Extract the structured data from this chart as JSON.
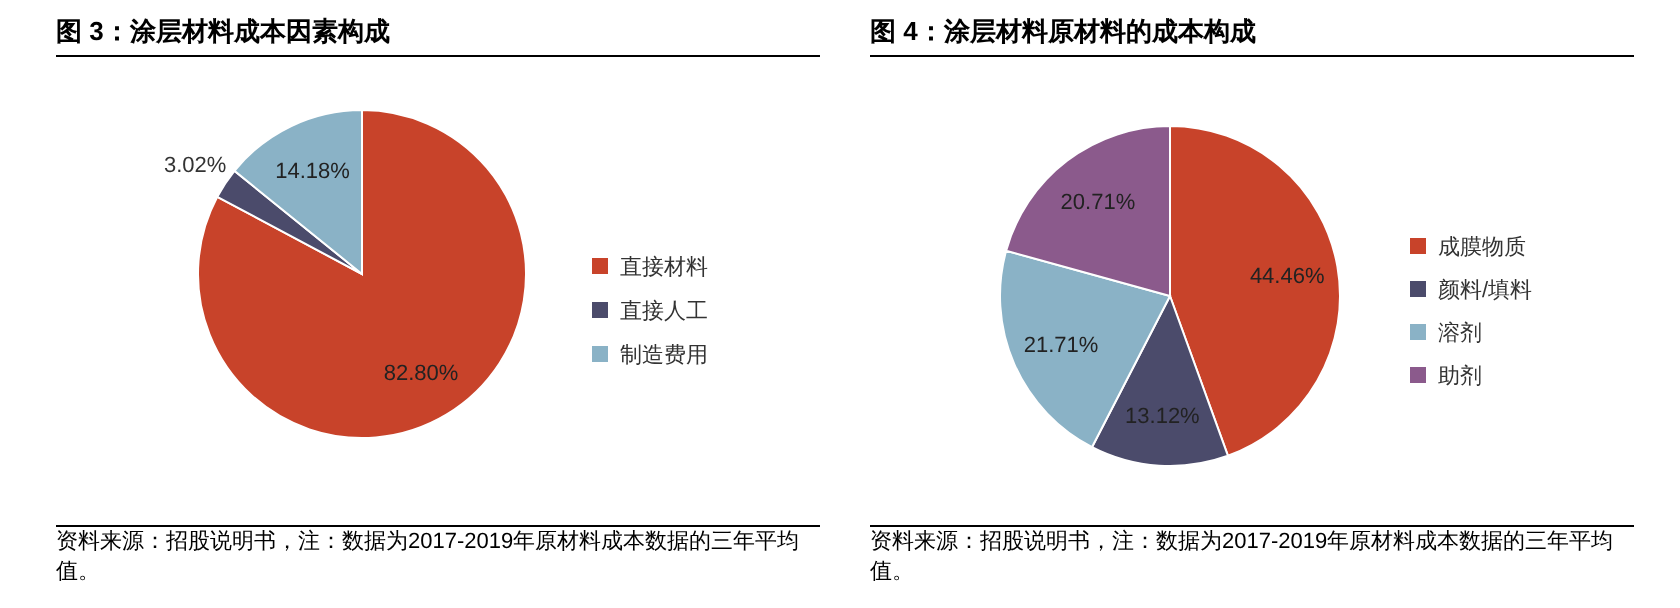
{
  "chart_data": [
    {
      "type": "pie",
      "title": "图 3：涂层材料成本因素构成",
      "categories": [
        "直接材料",
        "直接人工",
        "制造费用"
      ],
      "values": [
        82.8,
        3.02,
        14.18
      ],
      "colors": [
        "#c8432a",
        "#4b4b6b",
        "#8ab2c6"
      ],
      "value_labels": [
        "82.80%",
        "3.02%",
        "14.18%"
      ],
      "legend": "right",
      "annotations": [
        "资料来源：招股说明书，注：数据为2017-2019年原材料成本数据的三年平均值。"
      ]
    },
    {
      "type": "pie",
      "title": "图 4：涂层材料原材料的成本构成",
      "categories": [
        "成膜物质",
        "颜料/填料",
        "溶剂",
        "助剂"
      ],
      "values": [
        44.46,
        13.12,
        21.71,
        20.71
      ],
      "colors": [
        "#c8432a",
        "#4b4b6b",
        "#8ab2c6",
        "#8b5a8c"
      ],
      "value_labels": [
        "44.46%",
        "13.12%",
        "21.71%",
        "20.71%"
      ],
      "legend": "right",
      "annotations": [
        "资料来源：招股说明书，注：数据为2017-2019年原材料成本数据的三年平均值。"
      ]
    }
  ]
}
